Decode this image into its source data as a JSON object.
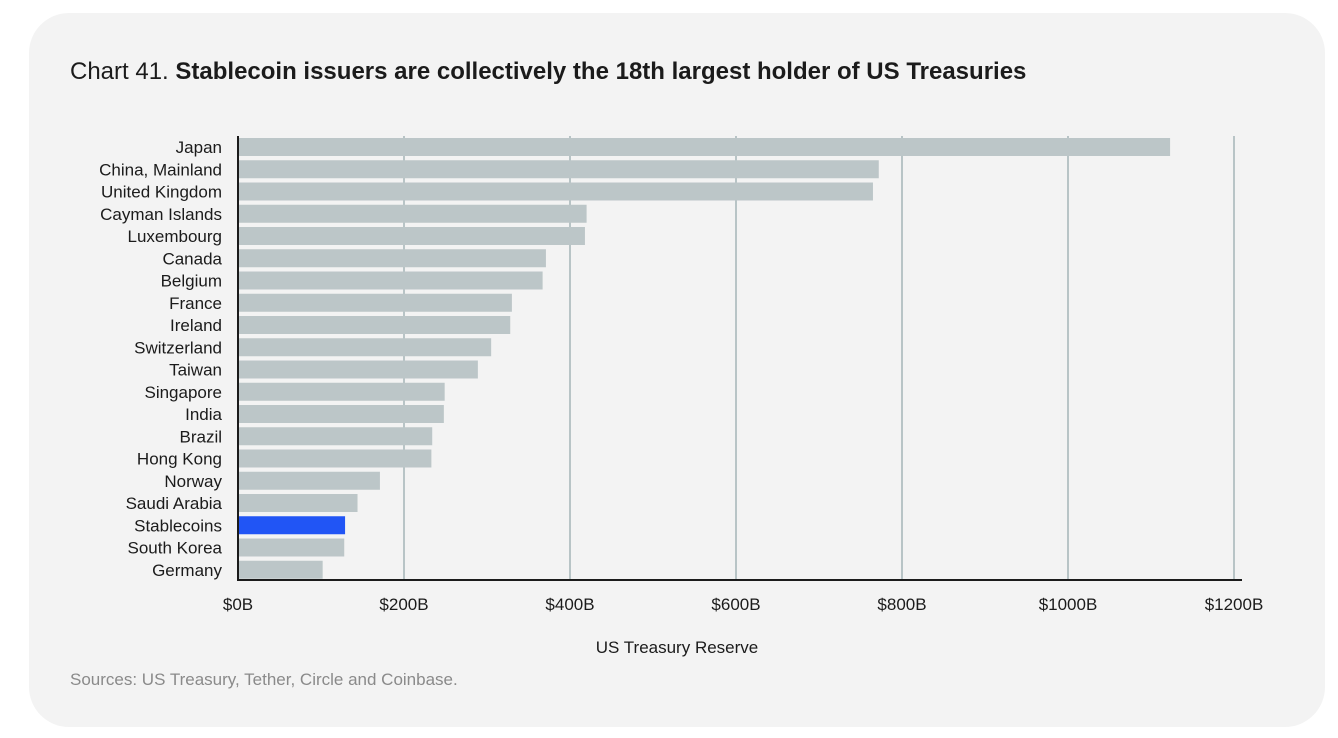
{
  "title": {
    "prefix": "Chart 41.",
    "main": "Stablecoin issuers are collectively the 18th largest holder of US Treasuries"
  },
  "source": "Sources: US Treasury, Tether, Circle and Coinbase.",
  "colors": {
    "bar": "#bcc6c8",
    "highlight": "#2155f5",
    "grid": "#b8c4c6",
    "axis": "#1b1b1b",
    "card": "#f3f3f3"
  },
  "chart_data": {
    "type": "bar",
    "orientation": "horizontal",
    "xlabel": "US Treasury Reserve",
    "xlim": [
      0,
      1200
    ],
    "x_ticks": [
      0,
      200,
      400,
      600,
      800,
      1000,
      1200
    ],
    "x_tick_labels": [
      "$0B",
      "$200B",
      "$400B",
      "$600B",
      "$800B",
      "$1000B",
      "$1200B"
    ],
    "grid": true,
    "highlight_category": "Stablecoins",
    "categories": [
      "Japan",
      "China, Mainland",
      "United Kingdom",
      "Cayman Islands",
      "Luxembourg",
      "Canada",
      "Belgium",
      "France",
      "Ireland",
      "Switzerland",
      "Taiwan",
      "Singapore",
      "India",
      "Brazil",
      "Hong Kong",
      "Norway",
      "Saudi Arabia",
      "Stablecoins",
      "South Korea",
      "Germany"
    ],
    "values": [
      1123,
      772,
      765,
      420,
      418,
      371,
      367,
      330,
      328,
      305,
      289,
      249,
      248,
      234,
      233,
      171,
      144,
      129,
      128,
      102
    ]
  }
}
